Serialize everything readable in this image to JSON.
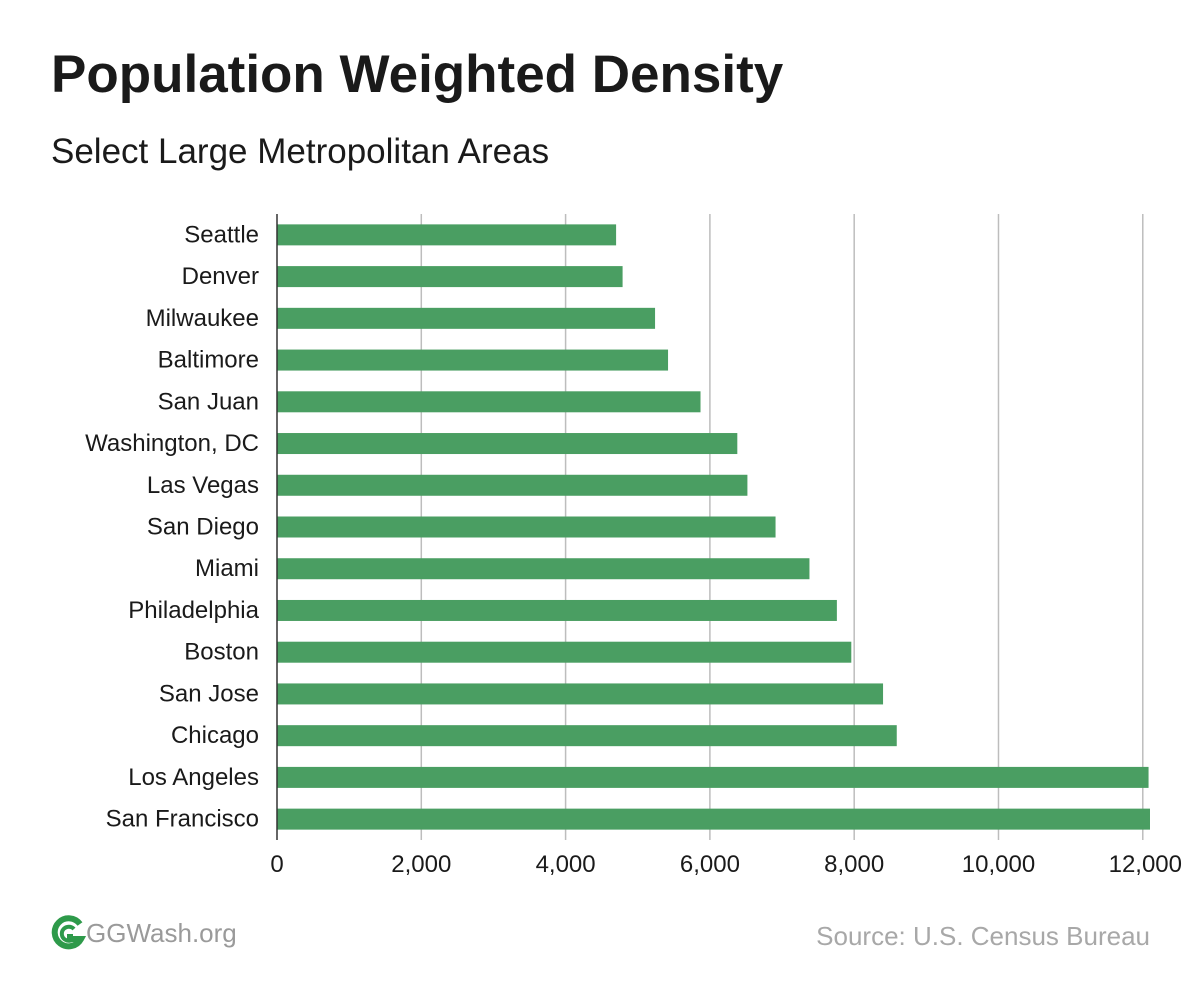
{
  "header": {
    "title": "Population Weighted Density",
    "subtitle": "Select Large Metropolitan Areas"
  },
  "footer": {
    "logo_text": "GGWash.org",
    "source": "Source: U.S. Census Bureau"
  },
  "colors": {
    "bar": "#4a9e62",
    "grid": "#bdbdbd",
    "axis": "#333333",
    "text": "#1a1a1a",
    "logo_green": "#2e9a4a"
  },
  "chart_data": {
    "type": "bar",
    "orientation": "horizontal",
    "categories": [
      "Seattle",
      "Denver",
      "Milwaukee",
      "Baltimore",
      "San Juan",
      "Washington, DC",
      "Las Vegas",
      "San Diego",
      "Miami",
      "Philadelphia",
      "Boston",
      "San Jose",
      "Chicago",
      "Los Angeles",
      "San Francisco"
    ],
    "values": [
      4700,
      4790,
      5240,
      5420,
      5870,
      6380,
      6520,
      6910,
      7380,
      7760,
      7960,
      8400,
      8590,
      12080,
      12100
    ],
    "xlim": [
      0,
      12100
    ],
    "xticks": [
      0,
      2000,
      4000,
      6000,
      8000,
      10000,
      12000
    ],
    "xtick_labels": [
      "0",
      "2,000",
      "4,000",
      "6,000",
      "8,000",
      "10,000",
      "12,000"
    ],
    "xlabel": "",
    "ylabel": "",
    "grid": true,
    "legend": "none"
  }
}
